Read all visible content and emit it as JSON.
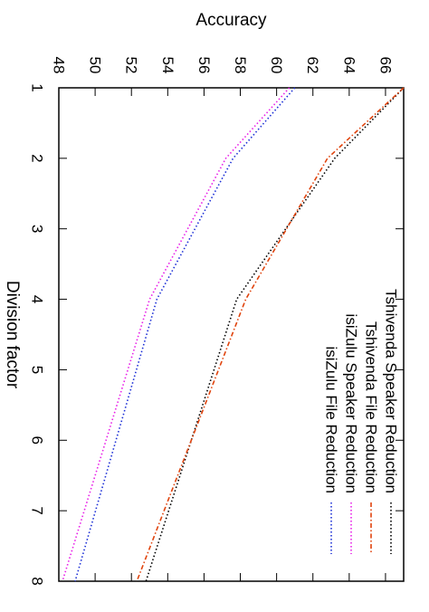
{
  "chart_data": {
    "type": "line",
    "orientation": "rotated-90-clockwise",
    "xlabel": "Division factor",
    "ylabel": "Accuracy",
    "x": [
      1,
      2,
      3,
      4,
      5,
      6,
      7,
      8
    ],
    "xlim": [
      1,
      8
    ],
    "ylim": [
      48,
      67
    ],
    "xticks": [
      "1",
      "2",
      "3",
      "4",
      "5",
      "6",
      "7",
      "8"
    ],
    "yticks": [
      "48",
      "50",
      "52",
      "54",
      "56",
      "58",
      "60",
      "62",
      "64",
      "66"
    ],
    "grid": false,
    "legend_position": "top-right",
    "series": [
      {
        "name": "Tshivenda Speaker Reduction",
        "color": "#000000",
        "dash": "dotted",
        "x": [
          1,
          2,
          4,
          8
        ],
        "values": [
          67.0,
          63.2,
          57.8,
          52.8
        ]
      },
      {
        "name": "Tshivenda File Reduction",
        "color": "#e0440e",
        "dash": "dashdot",
        "x": [
          1,
          2,
          4,
          8
        ],
        "values": [
          67.0,
          62.8,
          58.3,
          52.3
        ]
      },
      {
        "name": "isiZulu Speaker Reduction",
        "color": "#e81ee8",
        "dash": "dotted",
        "x": [
          1,
          2,
          4,
          8
        ],
        "values": [
          60.7,
          57.2,
          53.0,
          48.2
        ]
      },
      {
        "name": "isiZulu File Reduction",
        "color": "#1c2fd6",
        "dash": "dotted",
        "x": [
          1,
          2,
          4,
          8
        ],
        "values": [
          61.0,
          57.6,
          53.4,
          48.9
        ]
      }
    ]
  }
}
